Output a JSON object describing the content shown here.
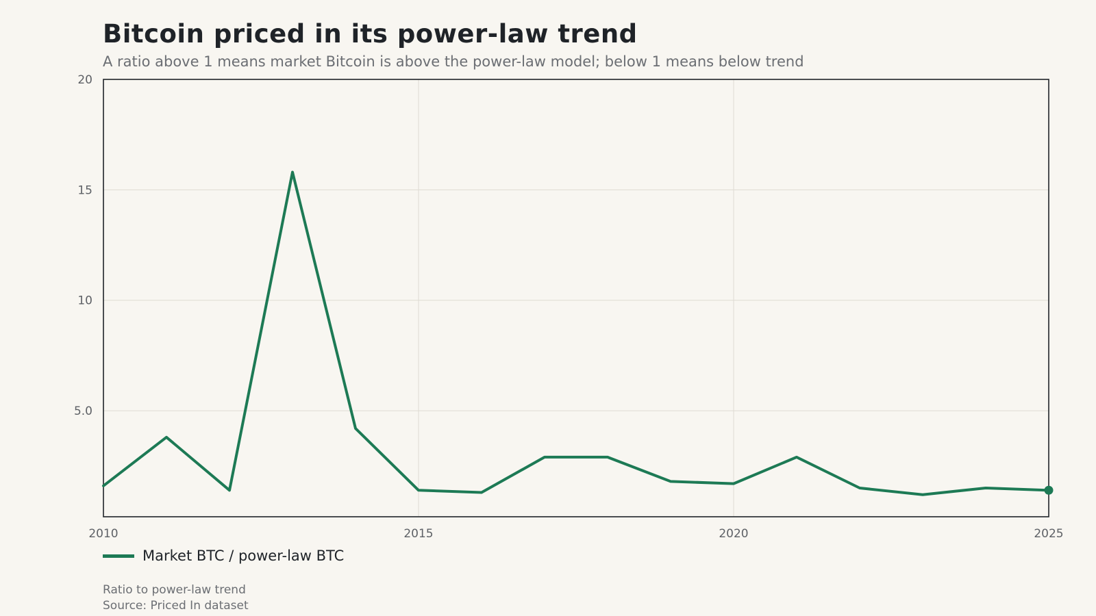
{
  "chart_data": {
    "type": "line",
    "title": "Bitcoin priced in its power-law trend",
    "subtitle": "A ratio above 1 means market Bitcoin is above the power-law model; below 1 means below trend",
    "xlabel": "",
    "ylabel": "",
    "x": [
      2010,
      2011,
      2012,
      2013,
      2014,
      2015,
      2016,
      2017,
      2018,
      2019,
      2020,
      2021,
      2022,
      2023,
      2024,
      2025
    ],
    "series": [
      {
        "name": "Market BTC / power-law BTC",
        "color": "#1d7a55",
        "values": [
          1.6,
          3.8,
          1.4,
          15.8,
          4.2,
          1.4,
          1.3,
          2.9,
          2.9,
          1.8,
          1.7,
          2.9,
          1.5,
          1.2,
          1.5,
          1.4
        ]
      }
    ],
    "xlim": [
      2010,
      2025
    ],
    "ylim": [
      0.2,
      20
    ],
    "x_ticks": [
      "2010",
      "2015",
      "2020",
      "2025"
    ],
    "x_tick_values": [
      2010,
      2015,
      2020,
      2025
    ],
    "y_ticks": [
      "5.0",
      "10",
      "15",
      "20"
    ],
    "y_tick_values": [
      5,
      10,
      15,
      20
    ],
    "grid": true,
    "legend_position": "bottom-left",
    "end_marker": true
  },
  "notes": {
    "unit": "Ratio to power-law trend",
    "source": "Source: Priced In dataset"
  }
}
